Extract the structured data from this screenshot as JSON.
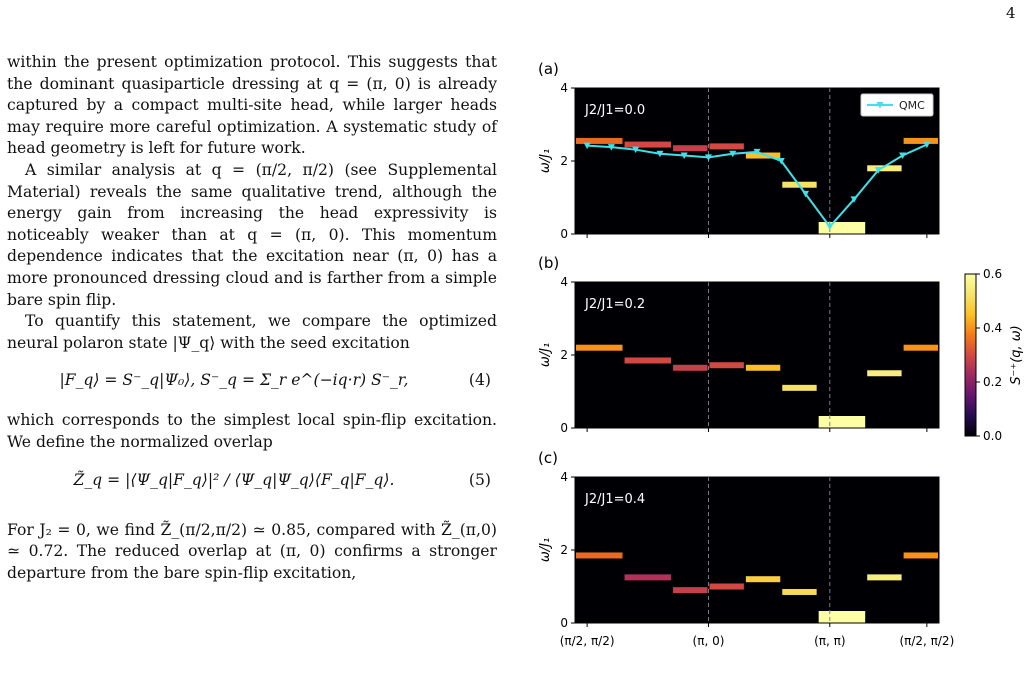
{
  "page_number": "4",
  "paragraphs": [
    "within the present optimization protocol. This suggests that the dominant quasiparticle dressing at q = (π, 0) is already captured by a compact multi-site head, while larger heads may require more careful optimization. A systematic study of head geometry is left for future work.",
    "A similar analysis at q = (π/2, π/2) (see Supplemental Material) reveals the same qualitative trend, although the energy gain from increasing the head expressivity is noticeably weaker than at q = (π, 0). This momentum dependence indicates that the excitation near (π, 0) has a more pronounced dressing cloud and is farther from a simple bare spin flip.",
    "To quantify this statement, we compare the optimized neural polaron state |Ψ_q⟩ with the seed excitation",
    "which corresponds to the simplest local spin-flip excitation. We define the normalized overlap",
    "For J₂ = 0, we find Z̃_(π/2,π/2) ≃ 0.85, compared with Z̃_(π,0) ≃ 0.72. The reduced overlap at (π, 0) confirms a stronger departure from the bare spin-flip excitation,"
  ],
  "equations": [
    {
      "text": "|F_q⟩ = S⁻_q|Ψ₀⟩,      S⁻_q = Σ_r e^(−iq·r) S⁻_r,",
      "number": "(4)"
    },
    {
      "text": "Z̃_q = |⟨Ψ_q|F_q⟩|² / ⟨Ψ_q|Ψ_q⟩⟨F_q|F_q⟩.",
      "number": "(5)"
    }
  ],
  "chart_data": {
    "type": "heatmap",
    "ylabel": "ω/J₁",
    "ylim": [
      0,
      4
    ],
    "yticks": [
      0,
      2,
      4
    ],
    "xticks": [
      "(π/2, π/2)",
      "(π, 0)",
      "(π, π)",
      "(π/2, π/2)"
    ],
    "x_tick_positions": [
      0,
      10,
      20,
      28
    ],
    "x_range": [
      -1,
      29
    ],
    "colorbar": {
      "label": "S⁻⁺(q, ω)",
      "min": 0.0,
      "max": 0.6,
      "ticks": [
        "0.0",
        "0.2",
        "0.4",
        "0.6"
      ]
    },
    "panels": [
      {
        "label": "(a)",
        "annotation": "J2/J1=0.0",
        "legend": "QMC",
        "peaks": [
          {
            "x0": -1,
            "x1": 3,
            "omega": 2.55,
            "intensity": 0.35
          },
          {
            "x0": 3,
            "x1": 7,
            "omega": 2.45,
            "intensity": 0.3
          },
          {
            "x0": 7,
            "x1": 10,
            "omega": 2.35,
            "intensity": 0.28
          },
          {
            "x0": 10,
            "x1": 13,
            "omega": 2.4,
            "intensity": 0.3
          },
          {
            "x0": 13,
            "x1": 16,
            "omega": 2.15,
            "intensity": 0.45
          },
          {
            "x0": 16,
            "x1": 19,
            "omega": 1.35,
            "intensity": 0.52
          },
          {
            "x0": 19,
            "x1": 23,
            "omega": 0.15,
            "intensity": 0.6
          },
          {
            "x0": 23,
            "x1": 26,
            "omega": 1.8,
            "intensity": 0.55
          },
          {
            "x0": 26,
            "x1": 29,
            "omega": 2.55,
            "intensity": 0.4
          }
        ],
        "qmc": {
          "x": [
            0,
            2,
            4,
            6,
            8,
            10,
            12,
            14,
            16,
            18,
            20,
            22,
            24,
            26,
            28
          ],
          "omega": [
            2.42,
            2.38,
            2.31,
            2.2,
            2.15,
            2.1,
            2.2,
            2.25,
            2.0,
            1.1,
            0.2,
            0.95,
            1.75,
            2.15,
            2.45
          ]
        }
      },
      {
        "label": "(b)",
        "annotation": "J2/J1=0.2",
        "peaks": [
          {
            "x0": -1,
            "x1": 3,
            "omega": 2.2,
            "intensity": 0.4
          },
          {
            "x0": 3,
            "x1": 7,
            "omega": 1.85,
            "intensity": 0.3
          },
          {
            "x0": 7,
            "x1": 10,
            "omega": 1.65,
            "intensity": 0.28
          },
          {
            "x0": 10,
            "x1": 13,
            "omega": 1.72,
            "intensity": 0.3
          },
          {
            "x0": 13,
            "x1": 16,
            "omega": 1.65,
            "intensity": 0.45
          },
          {
            "x0": 16,
            "x1": 19,
            "omega": 1.1,
            "intensity": 0.52
          },
          {
            "x0": 19,
            "x1": 23,
            "omega": 0.15,
            "intensity": 0.6
          },
          {
            "x0": 23,
            "x1": 26,
            "omega": 1.5,
            "intensity": 0.55
          },
          {
            "x0": 26,
            "x1": 29,
            "omega": 2.2,
            "intensity": 0.4
          }
        ]
      },
      {
        "label": "(c)",
        "annotation": "J2/J1=0.4",
        "peaks": [
          {
            "x0": -1,
            "x1": 3,
            "omega": 1.85,
            "intensity": 0.35
          },
          {
            "x0": 3,
            "x1": 7,
            "omega": 1.25,
            "intensity": 0.25
          },
          {
            "x0": 7,
            "x1": 10,
            "omega": 0.9,
            "intensity": 0.28
          },
          {
            "x0": 10,
            "x1": 13,
            "omega": 1.0,
            "intensity": 0.3
          },
          {
            "x0": 13,
            "x1": 16,
            "omega": 1.2,
            "intensity": 0.48
          },
          {
            "x0": 16,
            "x1": 19,
            "omega": 0.85,
            "intensity": 0.5
          },
          {
            "x0": 19,
            "x1": 23,
            "omega": 0.2,
            "intensity": 0.6
          },
          {
            "x0": 23,
            "x1": 26,
            "omega": 1.25,
            "intensity": 0.55
          },
          {
            "x0": 26,
            "x1": 29,
            "omega": 1.85,
            "intensity": 0.4
          }
        ]
      }
    ]
  },
  "colors": {
    "qmc_line": "#3fe0e8",
    "plot_bg": "#000004",
    "guide_line": "#7f7f7f"
  }
}
